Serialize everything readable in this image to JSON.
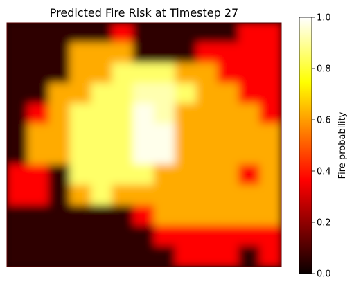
{
  "chart_data": {
    "type": "heatmap",
    "title": "Predicted Fire Risk at Timestep 27",
    "xlabel": "",
    "ylabel": "",
    "axes_visible": false,
    "colormap": "hot",
    "colorbar": {
      "label": "Fire probability",
      "range": [
        0.0,
        1.0
      ],
      "ticks": [
        0.0,
        0.2,
        0.4,
        0.6,
        0.8,
        1.0
      ],
      "tick_labels": [
        "0.0",
        "0.2",
        "0.4",
        "0.6",
        "0.8",
        "1.0"
      ],
      "position": "right"
    },
    "grid": {
      "rows": 12,
      "cols": 13,
      "values": [
        [
          0.05,
          0.05,
          0.05,
          0.05,
          0.05,
          0.35,
          0.05,
          0.05,
          0.05,
          0.05,
          0.05,
          0.35,
          0.35
        ],
        [
          0.05,
          0.05,
          0.05,
          0.62,
          0.62,
          0.62,
          0.05,
          0.05,
          0.05,
          0.35,
          0.35,
          0.35,
          0.35
        ],
        [
          0.05,
          0.05,
          0.05,
          0.62,
          0.62,
          0.85,
          0.85,
          0.85,
          0.62,
          0.62,
          0.35,
          0.35,
          0.35
        ],
        [
          0.05,
          0.05,
          0.62,
          0.62,
          0.85,
          0.85,
          0.92,
          0.92,
          0.85,
          0.62,
          0.62,
          0.35,
          0.35
        ],
        [
          0.05,
          0.35,
          0.62,
          0.85,
          0.85,
          0.85,
          0.98,
          0.92,
          0.62,
          0.62,
          0.62,
          0.62,
          0.35
        ],
        [
          0.05,
          0.62,
          0.62,
          0.85,
          0.85,
          0.85,
          0.98,
          0.98,
          0.62,
          0.62,
          0.62,
          0.62,
          0.62
        ],
        [
          0.05,
          0.62,
          0.62,
          0.85,
          0.85,
          0.85,
          0.98,
          0.98,
          0.62,
          0.62,
          0.62,
          0.62,
          0.62
        ],
        [
          0.35,
          0.35,
          0.05,
          0.85,
          0.85,
          0.85,
          0.85,
          0.62,
          0.62,
          0.62,
          0.62,
          0.35,
          0.62
        ],
        [
          0.35,
          0.35,
          0.05,
          0.62,
          0.85,
          0.62,
          0.62,
          0.62,
          0.62,
          0.62,
          0.62,
          0.62,
          0.62
        ],
        [
          0.05,
          0.05,
          0.05,
          0.05,
          0.05,
          0.05,
          0.35,
          0.62,
          0.62,
          0.62,
          0.62,
          0.62,
          0.62
        ],
        [
          0.05,
          0.05,
          0.05,
          0.05,
          0.05,
          0.05,
          0.05,
          0.35,
          0.35,
          0.35,
          0.35,
          0.35,
          0.35
        ],
        [
          0.05,
          0.05,
          0.05,
          0.05,
          0.05,
          0.05,
          0.05,
          0.05,
          0.35,
          0.35,
          0.35,
          0.05,
          0.35
        ]
      ]
    }
  }
}
